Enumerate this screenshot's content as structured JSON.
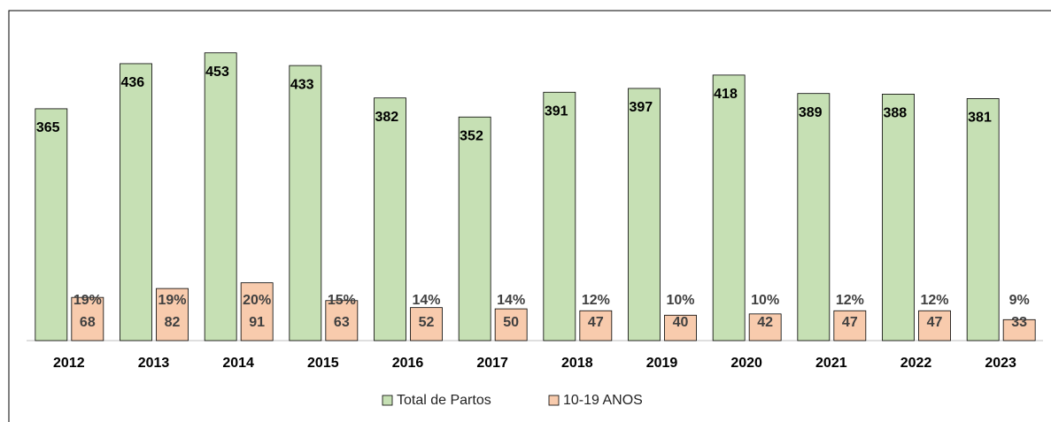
{
  "chart_data": {
    "type": "bar",
    "categories": [
      "2012",
      "2013",
      "2014",
      "2015",
      "2016",
      "2017",
      "2018",
      "2019",
      "2020",
      "2021",
      "2022",
      "2023"
    ],
    "series": [
      {
        "name": "Total de Partos",
        "color": "#c6e0b4",
        "values": [
          365,
          436,
          453,
          433,
          382,
          352,
          391,
          397,
          418,
          389,
          388,
          381
        ]
      },
      {
        "name": "10-19 ANOS",
        "color": "#f8cbad",
        "values": [
          68,
          82,
          91,
          63,
          52,
          50,
          47,
          40,
          42,
          47,
          47,
          33
        ],
        "percent_labels": [
          "19%",
          "19%",
          "20%",
          "15%",
          "14%",
          "14%",
          "12%",
          "10%",
          "10%",
          "12%",
          "12%",
          "9%"
        ]
      }
    ],
    "ylim": [
      0,
      500
    ],
    "legend": "bottom"
  }
}
